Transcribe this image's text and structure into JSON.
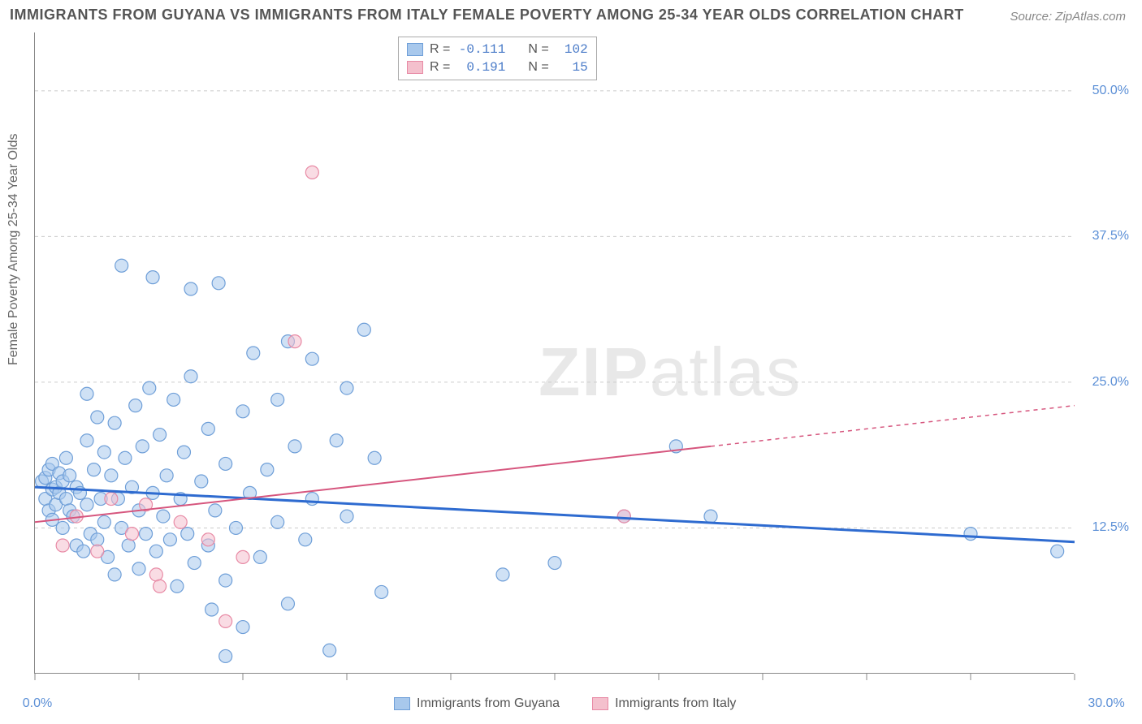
{
  "title": "IMMIGRANTS FROM GUYANA VS IMMIGRANTS FROM ITALY FEMALE POVERTY AMONG 25-34 YEAR OLDS CORRELATION CHART",
  "source": "Source: ZipAtlas.com",
  "y_axis_label": "Female Poverty Among 25-34 Year Olds",
  "watermark_a": "ZIP",
  "watermark_b": "atlas",
  "chart": {
    "type": "scatter",
    "xlim": [
      0,
      30
    ],
    "ylim": [
      0,
      55
    ],
    "x_ticks": [
      0,
      3,
      6,
      9,
      12,
      15,
      18,
      21,
      24,
      27,
      30
    ],
    "x_tick_labels": {
      "0": "0.0%",
      "30": "30.0%"
    },
    "y_ticks": [
      12.5,
      25.0,
      37.5,
      50.0
    ],
    "y_tick_labels": [
      "12.5%",
      "25.0%",
      "37.5%",
      "50.0%"
    ],
    "grid_color": "#cccccc",
    "background_color": "#ffffff",
    "series": [
      {
        "name": "Immigrants from Guyana",
        "color_fill": "#a8c8ec",
        "color_stroke": "#6f9fd8",
        "marker_radius": 8,
        "fill_opacity": 0.55,
        "R": "-0.111",
        "N": "102",
        "trend": {
          "x1": 0,
          "y1": 16.0,
          "x2": 30,
          "y2": 11.3,
          "color": "#2e6bd0",
          "width": 3,
          "solid_until_x": 30
        },
        "points": [
          [
            0.2,
            16.5
          ],
          [
            0.3,
            15.0
          ],
          [
            0.3,
            16.8
          ],
          [
            0.4,
            14.0
          ],
          [
            0.4,
            17.5
          ],
          [
            0.5,
            15.8
          ],
          [
            0.5,
            13.2
          ],
          [
            0.5,
            18.0
          ],
          [
            0.6,
            16.0
          ],
          [
            0.6,
            14.5
          ],
          [
            0.7,
            17.2
          ],
          [
            0.7,
            15.5
          ],
          [
            0.8,
            12.5
          ],
          [
            0.8,
            16.5
          ],
          [
            0.9,
            15.0
          ],
          [
            0.9,
            18.5
          ],
          [
            1.0,
            14.0
          ],
          [
            1.0,
            17.0
          ],
          [
            1.1,
            13.5
          ],
          [
            1.2,
            16.0
          ],
          [
            1.2,
            11.0
          ],
          [
            1.3,
            15.5
          ],
          [
            1.4,
            10.5
          ],
          [
            1.5,
            14.5
          ],
          [
            1.5,
            24.0
          ],
          [
            1.5,
            20.0
          ],
          [
            1.6,
            12.0
          ],
          [
            1.7,
            17.5
          ],
          [
            1.8,
            11.5
          ],
          [
            1.8,
            22.0
          ],
          [
            1.9,
            15.0
          ],
          [
            2.0,
            19.0
          ],
          [
            2.0,
            13.0
          ],
          [
            2.1,
            10.0
          ],
          [
            2.2,
            17.0
          ],
          [
            2.3,
            21.5
          ],
          [
            2.3,
            8.5
          ],
          [
            2.4,
            15.0
          ],
          [
            2.5,
            35.0
          ],
          [
            2.5,
            12.5
          ],
          [
            2.6,
            18.5
          ],
          [
            2.7,
            11.0
          ],
          [
            2.8,
            16.0
          ],
          [
            2.9,
            23.0
          ],
          [
            3.0,
            14.0
          ],
          [
            3.0,
            9.0
          ],
          [
            3.1,
            19.5
          ],
          [
            3.2,
            12.0
          ],
          [
            3.3,
            24.5
          ],
          [
            3.4,
            15.5
          ],
          [
            3.4,
            34.0
          ],
          [
            3.5,
            10.5
          ],
          [
            3.6,
            20.5
          ],
          [
            3.7,
            13.5
          ],
          [
            3.8,
            17.0
          ],
          [
            3.9,
            11.5
          ],
          [
            4.0,
            23.5
          ],
          [
            4.1,
            7.5
          ],
          [
            4.2,
            15.0
          ],
          [
            4.3,
            19.0
          ],
          [
            4.4,
            12.0
          ],
          [
            4.5,
            25.5
          ],
          [
            4.5,
            33.0
          ],
          [
            4.6,
            9.5
          ],
          [
            4.8,
            16.5
          ],
          [
            5.0,
            21.0
          ],
          [
            5.0,
            11.0
          ],
          [
            5.1,
            5.5
          ],
          [
            5.2,
            14.0
          ],
          [
            5.3,
            33.5
          ],
          [
            5.5,
            18.0
          ],
          [
            5.5,
            8.0
          ],
          [
            5.8,
            12.5
          ],
          [
            6.0,
            22.5
          ],
          [
            6.0,
            4.0
          ],
          [
            6.2,
            15.5
          ],
          [
            6.3,
            27.5
          ],
          [
            6.5,
            10.0
          ],
          [
            6.7,
            17.5
          ],
          [
            7.0,
            13.0
          ],
          [
            7.0,
            23.5
          ],
          [
            7.3,
            28.5
          ],
          [
            7.3,
            6.0
          ],
          [
            7.5,
            19.5
          ],
          [
            7.8,
            11.5
          ],
          [
            8.0,
            15.0
          ],
          [
            8.0,
            27.0
          ],
          [
            8.5,
            2.0
          ],
          [
            8.7,
            20.0
          ],
          [
            9.0,
            13.5
          ],
          [
            9.0,
            24.5
          ],
          [
            9.5,
            29.5
          ],
          [
            9.8,
            18.5
          ],
          [
            13.5,
            8.5
          ],
          [
            15.0,
            9.5
          ],
          [
            18.5,
            19.5
          ],
          [
            17.0,
            13.5
          ],
          [
            19.5,
            13.5
          ],
          [
            27.0,
            12.0
          ],
          [
            29.5,
            10.5
          ],
          [
            10.0,
            7.0
          ],
          [
            5.5,
            1.5
          ]
        ]
      },
      {
        "name": "Immigrants from Italy",
        "color_fill": "#f4c0cd",
        "color_stroke": "#e88aa5",
        "marker_radius": 8,
        "fill_opacity": 0.55,
        "R": "0.191",
        "N": "15",
        "trend": {
          "x1": 0,
          "y1": 13.0,
          "x2": 30,
          "y2": 23.0,
          "color": "#d6567e",
          "width": 2,
          "solid_until_x": 19.5
        },
        "points": [
          [
            0.8,
            11.0
          ],
          [
            1.2,
            13.5
          ],
          [
            1.8,
            10.5
          ],
          [
            2.2,
            15.0
          ],
          [
            2.8,
            12.0
          ],
          [
            3.2,
            14.5
          ],
          [
            3.5,
            8.5
          ],
          [
            3.6,
            7.5
          ],
          [
            4.2,
            13.0
          ],
          [
            5.0,
            11.5
          ],
          [
            5.5,
            4.5
          ],
          [
            6.0,
            10.0
          ],
          [
            7.5,
            28.5
          ],
          [
            8.0,
            43.0
          ],
          [
            17.0,
            13.5
          ]
        ]
      }
    ]
  },
  "legend_top": {
    "r_label": "R =",
    "n_label": "N ="
  },
  "legend_bottom": [
    {
      "label": "Immigrants from Guyana",
      "fill": "#a8c8ec",
      "stroke": "#6f9fd8"
    },
    {
      "label": "Immigrants from Italy",
      "fill": "#f4c0cd",
      "stroke": "#e88aa5"
    }
  ]
}
